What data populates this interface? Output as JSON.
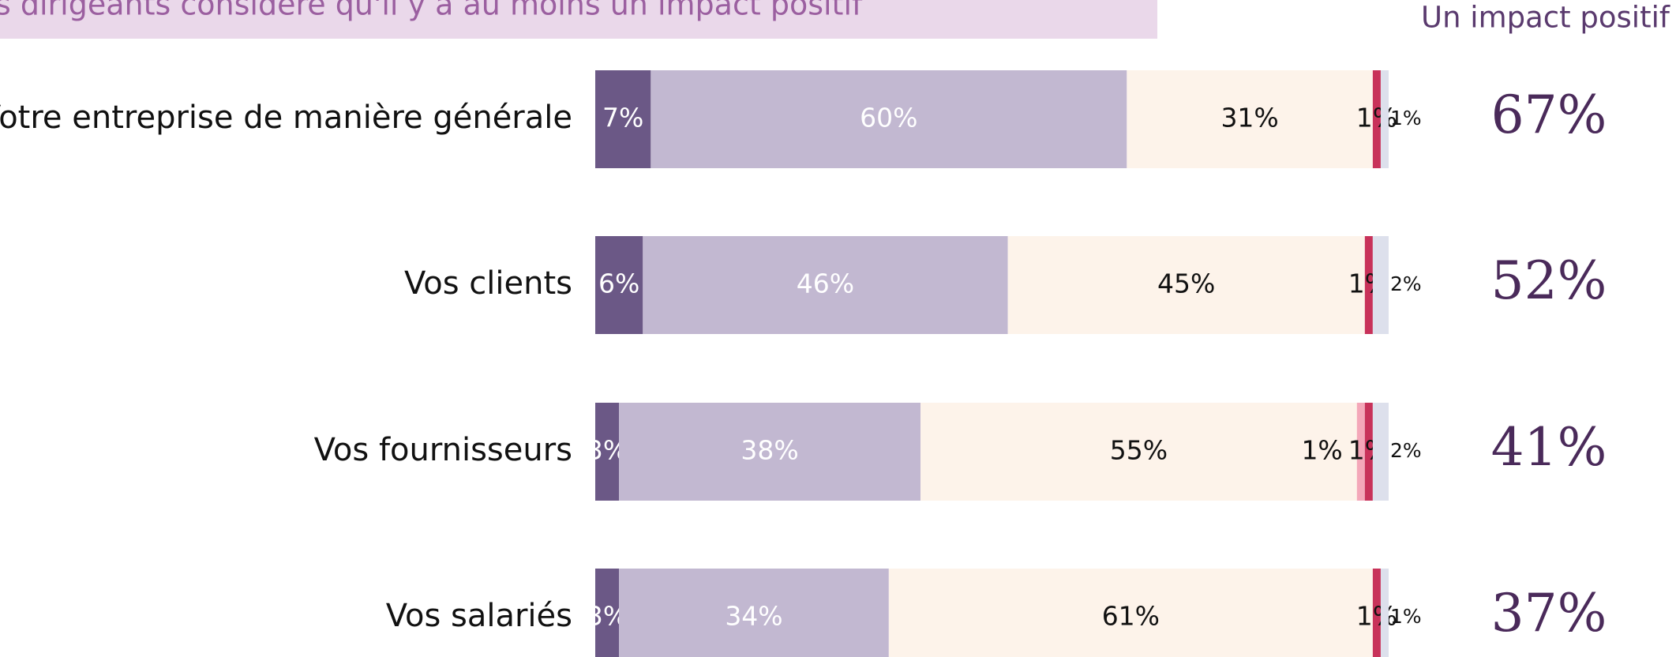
{
  "chart_data": {
    "type": "stacked-bar-horizontal",
    "title": "s dirigeants considère qu'il y a au moins un impact positif",
    "categories": [
      "Votre entreprise de manière générale",
      "Vos clients",
      "Vos fournisseurs",
      "Vos salariés"
    ],
    "xlim": [
      0,
      100
    ],
    "series": [
      {
        "color": "#6b5886",
        "label_color": "#ffffff",
        "values": [
          7,
          6,
          3,
          3
        ],
        "value_labels": [
          "7%",
          "6%",
          "3%",
          "3%"
        ]
      },
      {
        "color": "#c2b8d1",
        "label_color": "#ffffff",
        "values": [
          60,
          46,
          38,
          34
        ],
        "value_labels": [
          "60%",
          "46%",
          "38%",
          "34%"
        ]
      },
      {
        "color": "#fdf3ea",
        "label_color": "#111111",
        "values": [
          31,
          45,
          55,
          61
        ],
        "value_labels": [
          "31%",
          "45%",
          "55%",
          "61%"
        ]
      },
      {
        "color": "#f4a7b9",
        "label_color": "#111111",
        "values": [
          null,
          null,
          1,
          null
        ],
        "value_labels": [
          null,
          null,
          "1%",
          null
        ]
      },
      {
        "color": "#c8325a",
        "label_color": "#111111",
        "values": [
          1,
          1,
          1,
          1
        ],
        "value_labels": [
          "1%",
          "1%",
          "1%",
          "1%"
        ]
      },
      {
        "color": "#dde0ec",
        "label_color": "#111111",
        "values": [
          1,
          2,
          2,
          1
        ],
        "value_labels": [
          "1%",
          "2%",
          "2%",
          "1%"
        ]
      }
    ],
    "impact": {
      "title": "Un impact positif",
      "values": [
        67,
        52,
        41,
        37
      ],
      "value_labels": [
        "67%",
        "52%",
        "41%",
        "37%"
      ],
      "color": "#4a2a5a"
    }
  }
}
